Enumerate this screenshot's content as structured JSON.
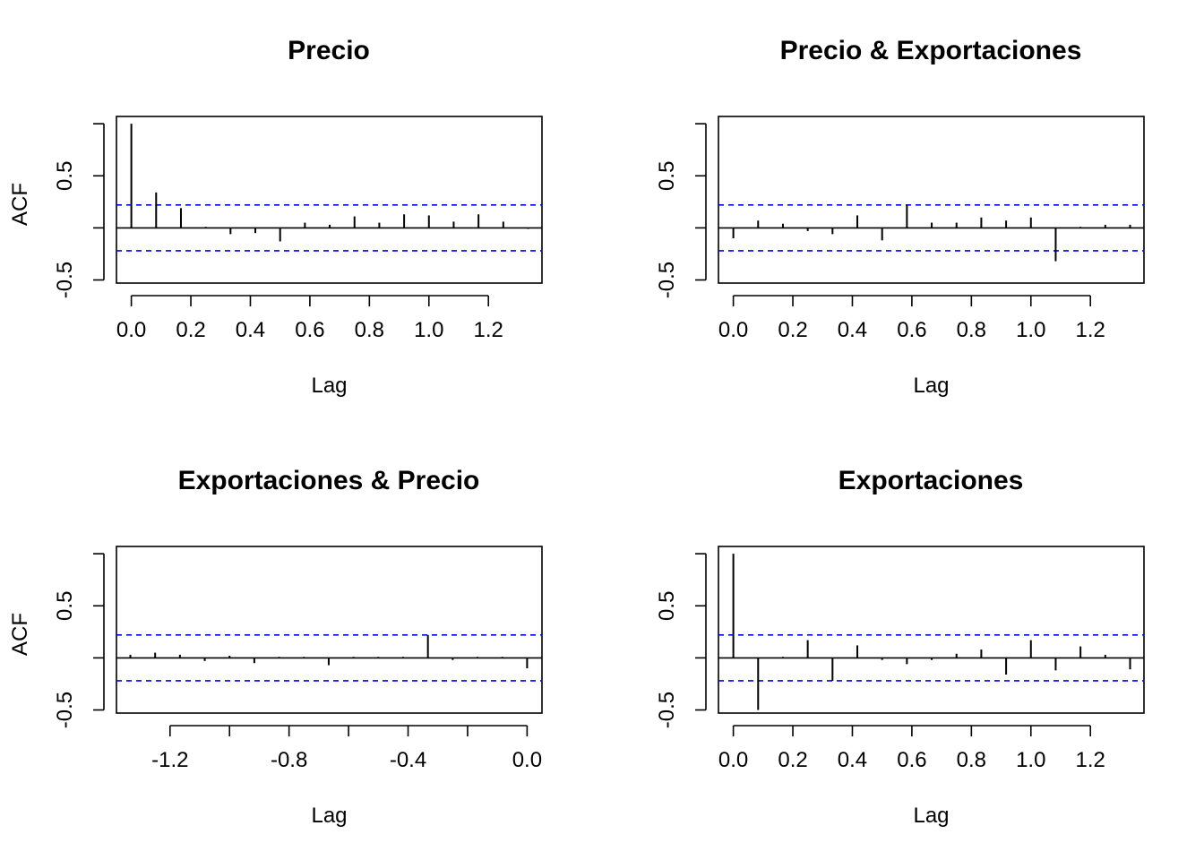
{
  "chart_data": [
    {
      "type": "bar",
      "title": "Precio",
      "xlabel": "Lag",
      "ylabel": "ACF",
      "xlim": [
        -0.05,
        1.38
      ],
      "ylim": [
        -0.53,
        1.07
      ],
      "x_ticks": [
        "0.0",
        "0.2",
        "0.4",
        "0.6",
        "0.8",
        "1.0",
        "1.2"
      ],
      "x_tick_values": [
        0,
        0.2,
        0.4,
        0.6,
        0.8,
        1.0,
        1.2
      ],
      "y_ticks": [
        "-0.5",
        "0.5"
      ],
      "y_tick_values": [
        -0.5,
        0.5
      ],
      "confidence_bound": 0.22,
      "lags": [
        0.0,
        0.0833,
        0.1667,
        0.25,
        0.3333,
        0.4167,
        0.5,
        0.5833,
        0.6667,
        0.75,
        0.8333,
        0.9167,
        1.0,
        1.0833,
        1.1667,
        1.25,
        1.3333
      ],
      "values": [
        1.0,
        0.34,
        0.19,
        0.01,
        -0.06,
        -0.05,
        -0.13,
        0.05,
        0.03,
        0.11,
        0.05,
        0.13,
        0.12,
        0.06,
        0.13,
        0.06,
        -0.01
      ],
      "legend": "none"
    },
    {
      "type": "bar",
      "title": "Precio & Exportaciones",
      "xlabel": "Lag",
      "ylabel": "",
      "xlim": [
        -0.05,
        1.38
      ],
      "ylim": [
        -0.53,
        1.07
      ],
      "x_ticks": [
        "0.0",
        "0.2",
        "0.4",
        "0.6",
        "0.8",
        "1.0",
        "1.2"
      ],
      "x_tick_values": [
        0,
        0.2,
        0.4,
        0.6,
        0.8,
        1.0,
        1.2
      ],
      "y_ticks": [
        "-0.5",
        "0.5"
      ],
      "y_tick_values": [
        -0.5,
        0.5
      ],
      "confidence_bound": 0.22,
      "lags": [
        0.0,
        0.0833,
        0.1667,
        0.25,
        0.3333,
        0.4167,
        0.5,
        0.5833,
        0.6667,
        0.75,
        0.8333,
        0.9167,
        1.0,
        1.0833,
        1.1667,
        1.25,
        1.3333
      ],
      "values": [
        -0.1,
        0.07,
        0.04,
        -0.03,
        -0.06,
        0.12,
        -0.12,
        0.22,
        0.05,
        0.05,
        0.1,
        0.07,
        0.1,
        -0.32,
        0.01,
        0.03,
        0.03
      ],
      "legend": "none"
    },
    {
      "type": "bar",
      "title": "Exportaciones & Precio",
      "xlabel": "Lag",
      "ylabel": "ACF",
      "xlim": [
        -1.38,
        0.05
      ],
      "ylim": [
        -0.53,
        1.07
      ],
      "x_ticks": [
        "-1.2",
        "-0.8",
        "-0.4",
        "0.0"
      ],
      "x_tick_values": [
        -1.2,
        -0.8,
        -0.4,
        0.0
      ],
      "minor_x_tick_values": [
        -1.0,
        -0.6,
        -0.2
      ],
      "y_ticks": [
        "-0.5",
        "0.5"
      ],
      "y_tick_values": [
        -0.5,
        0.5
      ],
      "confidence_bound": 0.22,
      "lags": [
        -1.3333,
        -1.25,
        -1.1667,
        -1.0833,
        -1.0,
        -0.9167,
        -0.8333,
        -0.75,
        -0.6667,
        -0.5833,
        -0.5,
        -0.4167,
        -0.3333,
        -0.25,
        -0.1667,
        -0.0833,
        0.0
      ],
      "values": [
        0.03,
        0.05,
        0.03,
        -0.03,
        0.02,
        -0.05,
        0.01,
        0.01,
        -0.07,
        0.01,
        0.01,
        0.01,
        0.22,
        -0.02,
        0.01,
        0.01,
        -0.1
      ],
      "legend": "none"
    },
    {
      "type": "bar",
      "title": "Exportaciones",
      "xlabel": "Lag",
      "ylabel": "",
      "xlim": [
        -0.05,
        1.38
      ],
      "ylim": [
        -0.53,
        1.07
      ],
      "x_ticks": [
        "0.0",
        "0.2",
        "0.4",
        "0.6",
        "0.8",
        "1.0",
        "1.2"
      ],
      "x_tick_values": [
        0,
        0.2,
        0.4,
        0.6,
        0.8,
        1.0,
        1.2
      ],
      "y_ticks": [
        "-0.5",
        "0.5"
      ],
      "y_tick_values": [
        -0.5,
        0.5
      ],
      "confidence_bound": 0.22,
      "lags": [
        0.0,
        0.0833,
        0.1667,
        0.25,
        0.3333,
        0.4167,
        0.5,
        0.5833,
        0.6667,
        0.75,
        0.8333,
        0.9167,
        1.0,
        1.0833,
        1.1667,
        1.25,
        1.3333
      ],
      "values": [
        1.0,
        -0.5,
        0.01,
        0.17,
        -0.22,
        0.12,
        -0.02,
        -0.06,
        -0.02,
        0.04,
        0.08,
        -0.16,
        0.17,
        -0.12,
        0.11,
        0.03,
        -0.11
      ],
      "legend": "none"
    }
  ],
  "colors": {
    "bars": "#000000",
    "confidence_lines": "#0000ff",
    "axes": "#000000"
  }
}
